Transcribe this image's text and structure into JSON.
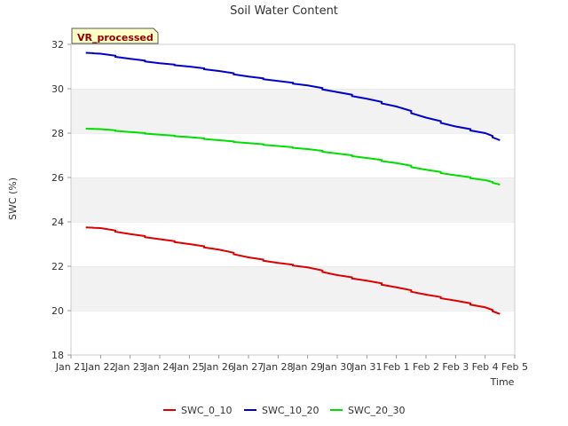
{
  "chart_data": {
    "type": "line",
    "title": "Soil Water Content",
    "xlabel": "Time",
    "ylabel": "SWC (%)",
    "badge": "VR_processed",
    "ylim": [
      18,
      32
    ],
    "yticks": [
      18,
      20,
      22,
      24,
      26,
      28,
      30,
      32
    ],
    "xlim_days": [
      0,
      15
    ],
    "xticks": [
      "Jan 21",
      "Jan 22",
      "Jan 23",
      "Jan 24",
      "Jan 25",
      "Jan 26",
      "Jan 27",
      "Jan 28",
      "Jan 29",
      "Jan 30",
      "Jan 31",
      "Feb 1",
      "Feb 2",
      "Feb 3",
      "Feb 4",
      "Feb 5"
    ],
    "x": [
      "Jan 21 12:00",
      "Jan 22",
      "Jan 23",
      "Jan 24",
      "Jan 25",
      "Jan 26",
      "Jan 27",
      "Jan 28",
      "Jan 29",
      "Jan 30",
      "Jan 31",
      "Feb 1",
      "Feb 2",
      "Feb 3",
      "Feb 4",
      "Feb 4 12:00"
    ],
    "series": [
      {
        "name": "SWC_0_10",
        "color": "#dd0000",
        "values": [
          23.75,
          23.72,
          23.45,
          23.22,
          23.0,
          22.75,
          22.4,
          22.15,
          21.95,
          21.6,
          21.35,
          21.05,
          20.72,
          20.45,
          20.15,
          19.85
        ]
      },
      {
        "name": "SWC_10_20",
        "color": "#0000cc",
        "values": [
          31.62,
          31.58,
          31.35,
          31.15,
          31.0,
          30.8,
          30.55,
          30.35,
          30.15,
          29.85,
          29.55,
          29.2,
          28.7,
          28.3,
          28.0,
          27.68
        ]
      },
      {
        "name": "SWC_20_30",
        "color": "#00dd00",
        "values": [
          28.2,
          28.18,
          28.05,
          27.93,
          27.82,
          27.68,
          27.55,
          27.42,
          27.28,
          27.08,
          26.88,
          26.65,
          26.35,
          26.1,
          25.88,
          25.68
        ]
      }
    ],
    "grid": "alternating horizontal bands",
    "legend_position": "bottom"
  }
}
